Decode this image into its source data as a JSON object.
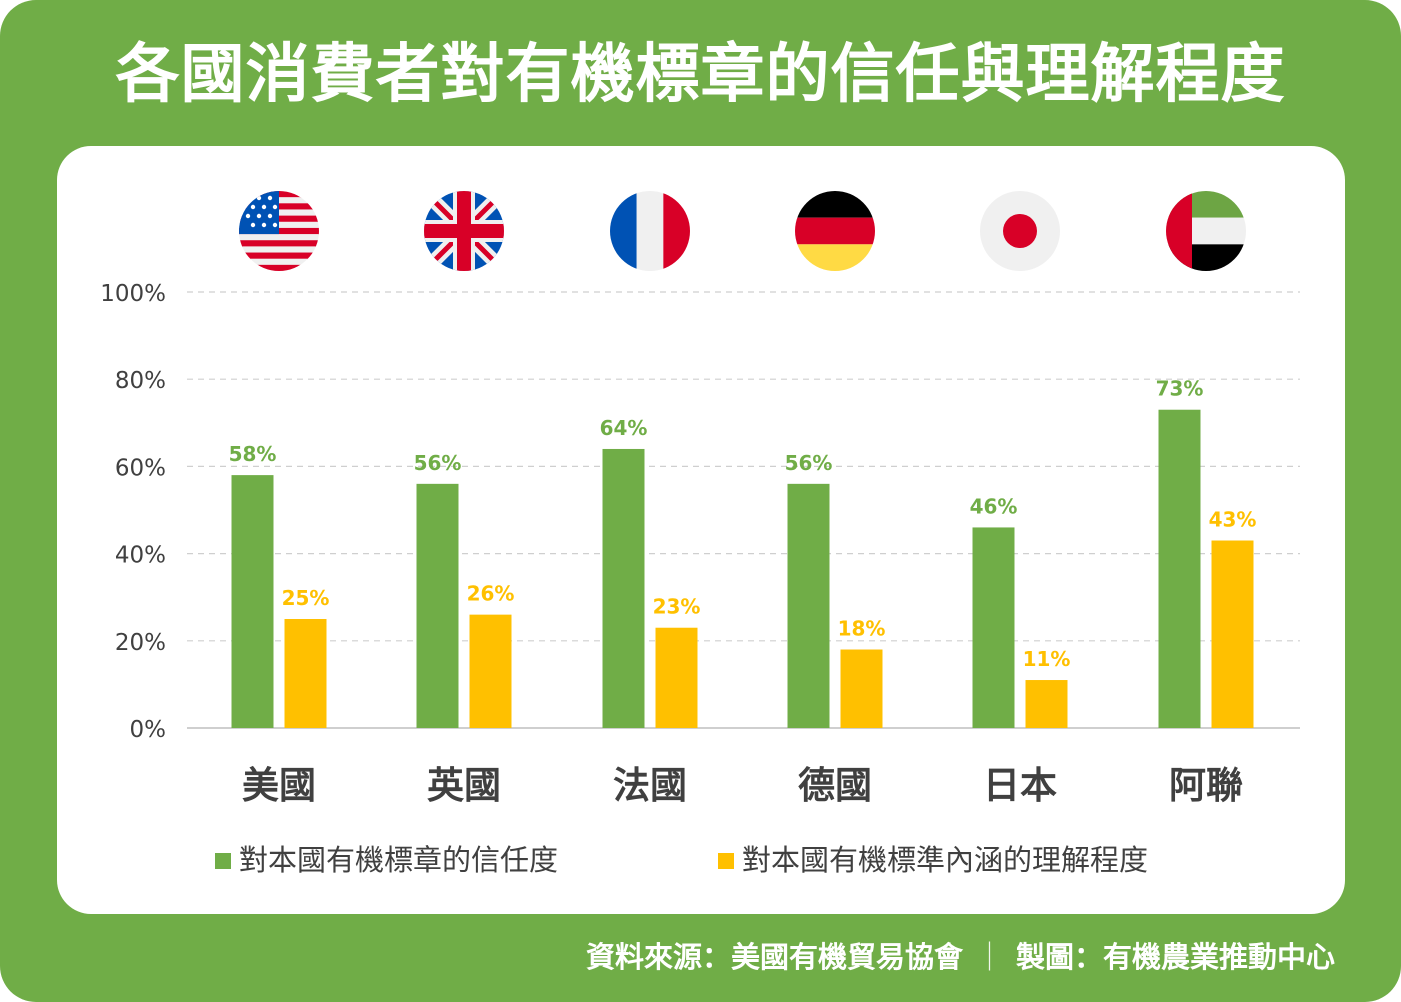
{
  "title": "各國消費者對有機標章的信任與理解程度",
  "colors": {
    "frame": "#70ad47",
    "trust": "#70ad47",
    "understanding": "#ffc000",
    "axis_text": "#404040",
    "grid": "#cfcfcf"
  },
  "flags": [
    "us-flag-icon",
    "uk-flag-icon",
    "france-flag-icon",
    "germany-flag-icon",
    "japan-flag-icon",
    "uae-flag-icon"
  ],
  "chart_data": {
    "type": "bar",
    "title": "各國消費者對有機標章的信任與理解程度",
    "categories": [
      "美國",
      "英國",
      "法國",
      "德國",
      "日本",
      "阿聯"
    ],
    "series": [
      {
        "name": "對本國有機標章的信任度",
        "color": "#70ad47",
        "values": [
          58,
          56,
          64,
          56,
          46,
          73
        ],
        "labels": [
          "58%",
          "56%",
          "64%",
          "56%",
          "46%",
          "73%"
        ]
      },
      {
        "name": "對本國有機標準內涵的理解程度",
        "color": "#ffc000",
        "values": [
          25,
          26,
          23,
          18,
          11,
          43
        ],
        "labels": [
          "25%",
          "26%",
          "23%",
          "18%",
          "11%",
          "43%"
        ]
      }
    ],
    "ylim": [
      0,
      100
    ],
    "yticks": [
      0,
      20,
      40,
      60,
      80,
      100
    ],
    "ytick_labels": [
      "0%",
      "20%",
      "40%",
      "60%",
      "80%",
      "100%"
    ],
    "grid": true,
    "legend_position": "bottom"
  },
  "footer": {
    "source": "資料來源：美國有機貿易協會",
    "separator": "｜",
    "credit": "製圖：有機農業推動中心"
  }
}
